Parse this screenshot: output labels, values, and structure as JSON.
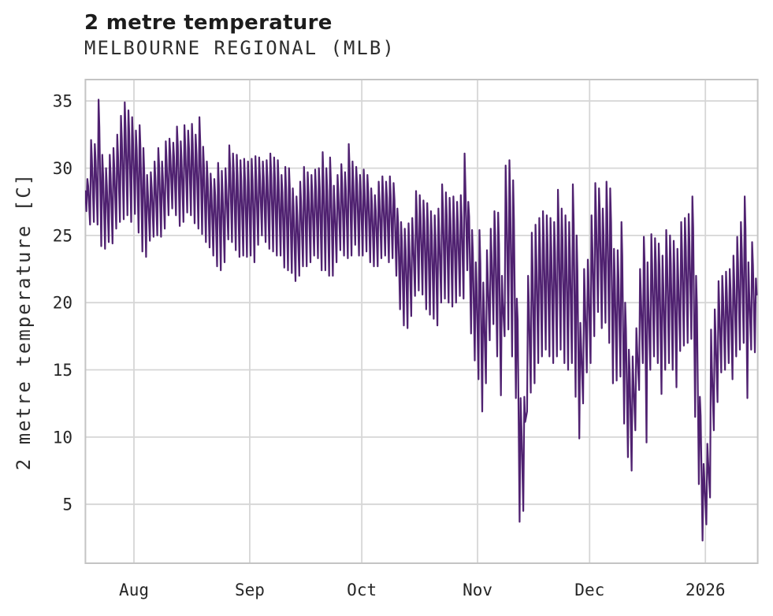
{
  "header": {
    "title": "2 metre temperature",
    "subtitle": "MELBOURNE REGIONAL (MLB)"
  },
  "chart_data": {
    "type": "line",
    "title": "2 metre temperature",
    "subtitle": "MELBOURNE REGIONAL (MLB)",
    "ylabel": "2 metre temperature [C]",
    "xlabel": "",
    "series_name": "2 metre temperature",
    "x_tick_labels": [
      "Aug",
      "Sep",
      "Oct",
      "Nov",
      "Dec",
      "2026"
    ],
    "x_tick_day_offsets": [
      13,
      44,
      74,
      105,
      135,
      166
    ],
    "y_ticks": [
      5,
      10,
      15,
      20,
      25,
      30,
      35
    ],
    "ylim": [
      0.6,
      36.6
    ],
    "grid": true,
    "legend": "none",
    "line_color": "#4f2170",
    "grid_color": "#d6d6d6",
    "border_color": "#c4c4c4",
    "sampling_note": "dense sub-daily temperature trace; encoded as per-day [min,max] in C. Day 0 = left edge (about 13 days before the 'Aug' tick); 181 days total, ending just after the '2026' tick.",
    "daily_min_max": [
      [
        26.8,
        29.2
      ],
      [
        25.8,
        32.1
      ],
      [
        26.0,
        31.8
      ],
      [
        25.8,
        35.1
      ],
      [
        24.2,
        31.0
      ],
      [
        24.0,
        30.0
      ],
      [
        24.5,
        31.0
      ],
      [
        24.4,
        31.5
      ],
      [
        25.5,
        32.5
      ],
      [
        26.0,
        33.9
      ],
      [
        26.2,
        34.9
      ],
      [
        26.5,
        34.3
      ],
      [
        26.0,
        33.8
      ],
      [
        26.6,
        32.8
      ],
      [
        25.2,
        33.2
      ],
      [
        23.8,
        31.5
      ],
      [
        23.4,
        29.5
      ],
      [
        24.6,
        29.7
      ],
      [
        24.9,
        30.5
      ],
      [
        25.0,
        31.5
      ],
      [
        24.9,
        30.5
      ],
      [
        25.5,
        32.0
      ],
      [
        26.5,
        32.2
      ],
      [
        27.0,
        31.9
      ],
      [
        26.5,
        33.1
      ],
      [
        25.7,
        32.0
      ],
      [
        26.0,
        33.2
      ],
      [
        26.7,
        32.8
      ],
      [
        26.5,
        33.3
      ],
      [
        25.9,
        32.5
      ],
      [
        25.5,
        33.8
      ],
      [
        25.1,
        31.6
      ],
      [
        24.5,
        30.5
      ],
      [
        24.1,
        29.6
      ],
      [
        23.5,
        29.2
      ],
      [
        22.7,
        30.4
      ],
      [
        22.4,
        29.8
      ],
      [
        23.0,
        30.0
      ],
      [
        24.7,
        31.7
      ],
      [
        24.5,
        31.1
      ],
      [
        23.9,
        31.0
      ],
      [
        23.4,
        30.6
      ],
      [
        23.5,
        30.7
      ],
      [
        23.4,
        30.5
      ],
      [
        23.5,
        30.7
      ],
      [
        23.0,
        30.9
      ],
      [
        24.3,
        30.8
      ],
      [
        25.0,
        30.5
      ],
      [
        24.5,
        30.6
      ],
      [
        24.0,
        31.1
      ],
      [
        23.8,
        30.8
      ],
      [
        23.5,
        30.6
      ],
      [
        23.5,
        29.5
      ],
      [
        22.6,
        30.1
      ],
      [
        22.4,
        30.0
      ],
      [
        22.2,
        28.5
      ],
      [
        21.6,
        27.9
      ],
      [
        22.0,
        29.0
      ],
      [
        22.7,
        30.1
      ],
      [
        22.7,
        29.7
      ],
      [
        23.0,
        29.5
      ],
      [
        23.5,
        29.9
      ],
      [
        23.3,
        30.0
      ],
      [
        22.4,
        31.2
      ],
      [
        22.4,
        30.0
      ],
      [
        22.0,
        30.8
      ],
      [
        22.0,
        28.7
      ],
      [
        23.0,
        29.5
      ],
      [
        23.9,
        30.3
      ],
      [
        23.5,
        29.7
      ],
      [
        23.3,
        31.8
      ],
      [
        23.5,
        30.5
      ],
      [
        24.3,
        30.1
      ],
      [
        23.5,
        29.5
      ],
      [
        23.5,
        29.9
      ],
      [
        23.8,
        29.5
      ],
      [
        23.0,
        28.5
      ],
      [
        22.7,
        28.0
      ],
      [
        22.7,
        29.0
      ],
      [
        23.3,
        29.4
      ],
      [
        23.5,
        29.0
      ],
      [
        23.0,
        29.4
      ],
      [
        23.3,
        28.9
      ],
      [
        22.0,
        27.0
      ],
      [
        19.5,
        26.0
      ],
      [
        18.3,
        25.5
      ],
      [
        18.1,
        25.9
      ],
      [
        19.0,
        26.3
      ],
      [
        20.5,
        28.3
      ],
      [
        20.9,
        28.0
      ],
      [
        20.6,
        27.6
      ],
      [
        19.5,
        27.4
      ],
      [
        19.1,
        26.8
      ],
      [
        18.8,
        26.5
      ],
      [
        18.3,
        27.0
      ],
      [
        20.0,
        28.8
      ],
      [
        20.3,
        28.2
      ],
      [
        20.0,
        27.8
      ],
      [
        19.7,
        27.9
      ],
      [
        20.0,
        27.5
      ],
      [
        20.5,
        28.0
      ],
      [
        20.3,
        31.1
      ],
      [
        22.4,
        27.5
      ],
      [
        17.7,
        25.4
      ],
      [
        15.7,
        23.0
      ],
      [
        14.3,
        25.4
      ],
      [
        11.9,
        21.5
      ],
      [
        14.0,
        23.9
      ],
      [
        17.2,
        25.5
      ],
      [
        18.4,
        26.8
      ],
      [
        16.0,
        26.7
      ],
      [
        13.1,
        22.0
      ],
      [
        17.5,
        30.2
      ],
      [
        18.0,
        30.6
      ],
      [
        16.0,
        29.1
      ],
      [
        12.9,
        20.3
      ],
      [
        3.7,
        12.9
      ],
      [
        4.5,
        13.0
      ],
      [
        11.9,
        22.0
      ],
      [
        13.3,
        25.2
      ],
      [
        14.0,
        25.8
      ],
      [
        15.5,
        26.3
      ],
      [
        16.0,
        26.8
      ],
      [
        16.5,
        26.5
      ],
      [
        16.0,
        26.3
      ],
      [
        15.5,
        26.0
      ],
      [
        16.0,
        28.4
      ],
      [
        16.5,
        27.0
      ],
      [
        15.5,
        26.5
      ],
      [
        15.0,
        26.0
      ],
      [
        15.5,
        28.8
      ],
      [
        13.0,
        25.0
      ],
      [
        9.9,
        18.5
      ],
      [
        12.5,
        22.5
      ],
      [
        14.8,
        23.2
      ],
      [
        15.5,
        26.5
      ],
      [
        17.5,
        28.9
      ],
      [
        19.3,
        28.5
      ],
      [
        18.1,
        27.0
      ],
      [
        18.5,
        29.0
      ],
      [
        17.0,
        28.5
      ],
      [
        14.0,
        24.0
      ],
      [
        14.2,
        23.9
      ],
      [
        14.5,
        26.0
      ],
      [
        11.0,
        20.0
      ],
      [
        8.5,
        16.5
      ],
      [
        7.5,
        16.0
      ],
      [
        10.5,
        18.1
      ],
      [
        13.5,
        22.5
      ],
      [
        15.5,
        24.9
      ],
      [
        9.6,
        23.0
      ],
      [
        15.0,
        25.1
      ],
      [
        16.0,
        24.8
      ],
      [
        15.5,
        24.4
      ],
      [
        13.2,
        23.5
      ],
      [
        15.0,
        25.4
      ],
      [
        15.5,
        25.0
      ],
      [
        15.0,
        24.6
      ],
      [
        13.7,
        24.0
      ],
      [
        16.4,
        26.0
      ],
      [
        16.8,
        26.3
      ],
      [
        17.0,
        26.6
      ],
      [
        17.3,
        27.9
      ],
      [
        11.5,
        22.0
      ],
      [
        6.5,
        13.0
      ],
      [
        2.3,
        8.0
      ],
      [
        3.5,
        9.5
      ],
      [
        5.5,
        18.0
      ],
      [
        10.5,
        19.5
      ],
      [
        12.6,
        21.6
      ],
      [
        14.8,
        22.0
      ],
      [
        15.0,
        22.3
      ],
      [
        15.5,
        22.5
      ],
      [
        14.3,
        23.5
      ],
      [
        16.0,
        24.9
      ],
      [
        16.5,
        26.0
      ],
      [
        17.0,
        27.9
      ],
      [
        12.9,
        23.0
      ],
      [
        16.5,
        24.5
      ],
      [
        16.3,
        21.8
      ],
      [
        17.0,
        21.7
      ]
    ]
  }
}
